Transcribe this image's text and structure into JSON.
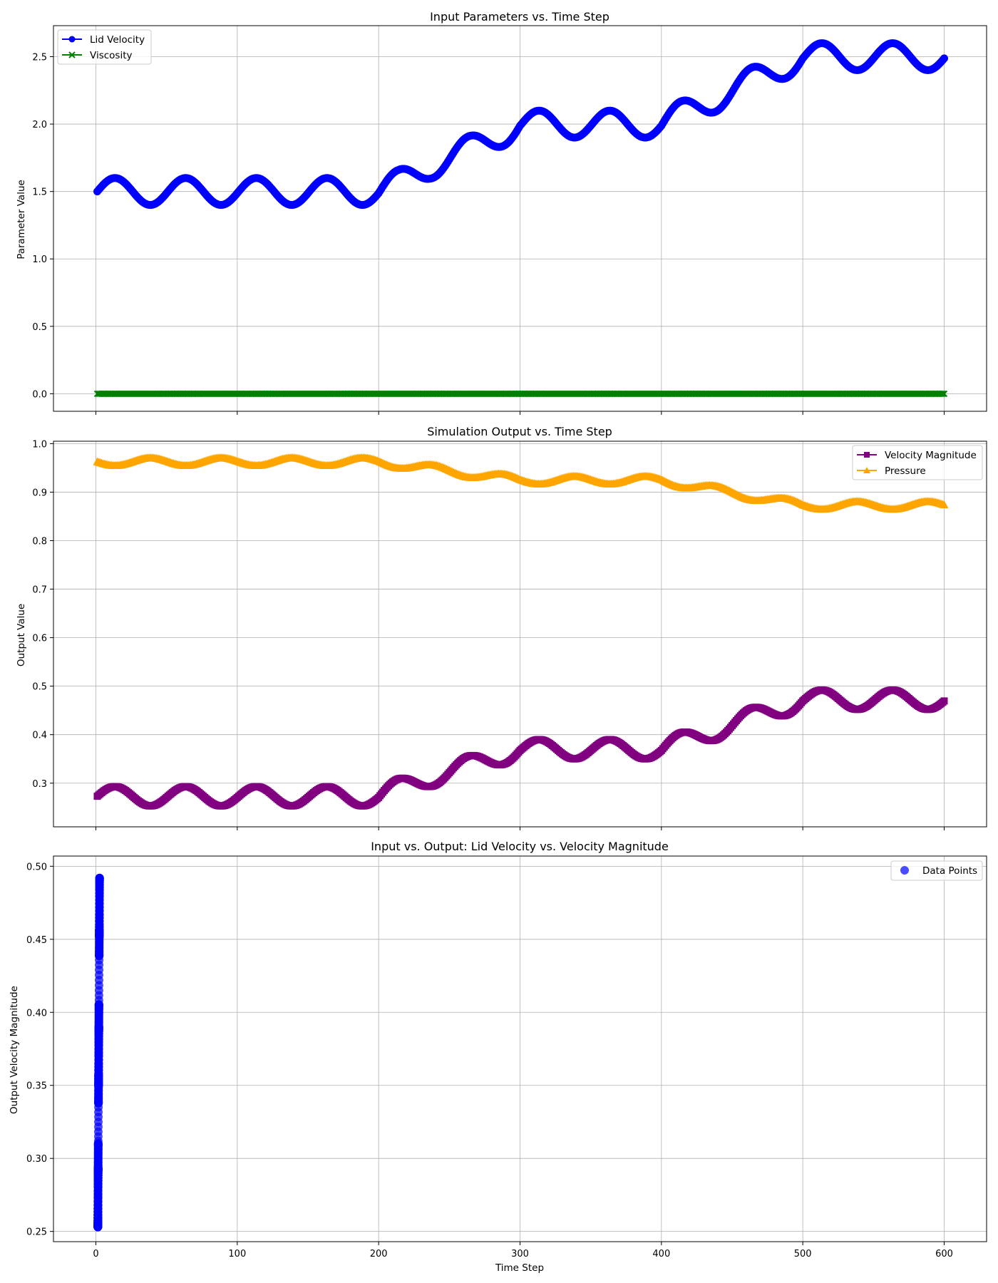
{
  "chart_data": [
    {
      "type": "line",
      "title": "Input Parameters vs. Time Step",
      "xlabel": "",
      "ylabel": "Parameter Value",
      "xlim": [
        -30,
        630
      ],
      "ylim": [
        -0.13,
        2.73
      ],
      "xticks": [
        0,
        100,
        200,
        300,
        400,
        500,
        600
      ],
      "xtick_labels_visible": false,
      "yticks": [
        0.0,
        0.5,
        1.0,
        1.5,
        2.0,
        2.5
      ],
      "ytick_labels": [
        "0.0",
        "0.5",
        "1.0",
        "1.5",
        "2.0",
        "2.5"
      ],
      "grid": true,
      "legend": "upper-left",
      "x_range": [
        1,
        600
      ],
      "series": [
        {
          "name": "Lid Velocity",
          "color": "#0000ff",
          "marker": "circle",
          "formula": "base + amp*sin(2*pi*(t-1)/50)",
          "amplitude": 0.1,
          "base_knots": [
            [
              1,
              1.5
            ],
            [
              200,
              1.5
            ],
            [
              214,
              1.56
            ],
            [
              236,
              1.69
            ],
            [
              266,
              1.82
            ],
            [
              300,
              2.0
            ],
            [
              400,
              2.0
            ],
            [
              500,
              2.5
            ],
            [
              600,
              2.5
            ]
          ]
        },
        {
          "name": "Viscosity",
          "color": "#008000",
          "marker": "x",
          "constant": 0.0
        }
      ]
    },
    {
      "type": "line",
      "title": "Simulation Output vs. Time Step",
      "xlabel": "",
      "ylabel": "Output Value",
      "xlim": [
        -30,
        630
      ],
      "ylim": [
        0.21,
        1.005
      ],
      "xticks": [
        0,
        100,
        200,
        300,
        400,
        500,
        600
      ],
      "xtick_labels_visible": false,
      "yticks": [
        0.3,
        0.4,
        0.5,
        0.6,
        0.7,
        0.8,
        0.9,
        1.0
      ],
      "ytick_labels": [
        "0.3",
        "0.4",
        "0.5",
        "0.6",
        "0.7",
        "0.8",
        "0.9",
        "1.0"
      ],
      "grid": true,
      "legend": "upper-right",
      "x_range": [
        1,
        600
      ],
      "series": [
        {
          "name": "Velocity Magnitude",
          "color": "#800080",
          "marker": "square",
          "formula": "base + amp*sin(2*pi*(t-1)/50)",
          "amplitude": 0.02,
          "base_knots": [
            [
              1,
              0.273
            ],
            [
              200,
              0.273
            ],
            [
              214,
              0.289
            ],
            [
              236,
              0.312
            ],
            [
              266,
              0.338
            ],
            [
              300,
              0.37
            ],
            [
              400,
              0.37
            ],
            [
              500,
              0.472
            ],
            [
              600,
              0.472
            ]
          ]
        },
        {
          "name": "Pressure",
          "color": "#ffa500",
          "marker": "triangle",
          "formula": "base - amp*sin(2*pi*(t-1)/50)",
          "amplitude": 0.008,
          "base_knots": [
            [
              1,
              0.963
            ],
            [
              200,
              0.963
            ],
            [
              300,
              0.925
            ],
            [
              400,
              0.925
            ],
            [
              500,
              0.873
            ],
            [
              600,
              0.873
            ]
          ]
        }
      ]
    },
    {
      "type": "scatter",
      "title": "Input vs. Output: Lid Velocity vs. Velocity Magnitude",
      "xlabel": "Time Step",
      "ylabel": "Output Velocity Magnitude",
      "xlim": [
        -30,
        630
      ],
      "ylim": [
        0.243,
        0.507
      ],
      "xticks": [
        0,
        100,
        200,
        300,
        400,
        500,
        600
      ],
      "xtick_labels": [
        "0",
        "100",
        "200",
        "300",
        "400",
        "500",
        "600"
      ],
      "yticks": [
        0.25,
        0.3,
        0.35,
        0.4,
        0.45,
        0.5
      ],
      "ytick_labels": [
        "0.25",
        "0.30",
        "0.35",
        "0.40",
        "0.45",
        "0.50"
      ],
      "grid": true,
      "legend": "upper-right",
      "series": [
        {
          "name": "Data Points",
          "color": "#0000ff",
          "alpha": 0.7,
          "marker": "circle",
          "x_source": "Lid Velocity",
          "y_source": "Velocity Magnitude",
          "x_range": [
            1.4,
            2.6
          ],
          "y_range": [
            0.253,
            0.495
          ]
        }
      ]
    }
  ]
}
